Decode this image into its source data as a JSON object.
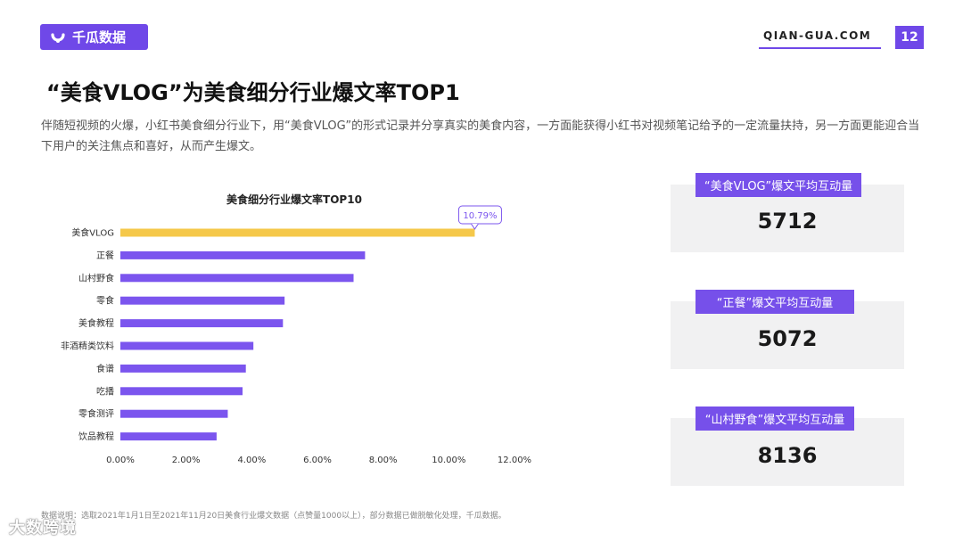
{
  "header": {
    "logo_text": "千瓜数据",
    "logo_icon": "qiangua-logo-icon",
    "site": "QIAN-GUA.COM",
    "page_number": "12",
    "accent_color": "#6f48e8"
  },
  "title": "“美食VLOG”为美食细分行业爆文率TOP1",
  "description": "伴随短视频的火爆，小红书美食细分行业下，用“美食VLOG”的形式记录并分享真实的美食内容，一方面能获得小红书对视频笔记给予的一定流量扶持，另一方面更能迎合当下用户的关注焦点和喜好，从而产生爆文。",
  "chart_data": {
    "type": "bar",
    "orientation": "horizontal",
    "title": "美食细分行业爆文率TOP10",
    "categories": [
      "美食VLOG",
      "正餐",
      "山村野食",
      "零食",
      "美食教程",
      "非酒精类饮料",
      "食谱",
      "吃播",
      "零食测评",
      "饮品教程"
    ],
    "values": [
      10.79,
      7.45,
      7.1,
      5.0,
      4.95,
      4.05,
      3.82,
      3.72,
      3.27,
      2.93
    ],
    "unit": "%",
    "xlim": [
      0,
      12
    ],
    "xticks": [
      "0.00%",
      "2.00%",
      "4.00%",
      "6.00%",
      "8.00%",
      "10.00%",
      "12.00%"
    ],
    "highlight_label": "10.79%",
    "colors": {
      "highlight": "#f5c84a",
      "bar": "#7b55ee"
    },
    "grid": false
  },
  "cards": [
    {
      "label": "“美食VLOG”爆文平均互动量",
      "value": "5712"
    },
    {
      "label": "“正餐”爆文平均互动量",
      "value": "5072"
    },
    {
      "label": "“山村野食”爆文平均互动量",
      "value": "8136"
    }
  ],
  "footnote": "数据说明：选取2021年1月1日至2021年11月20日美食行业爆文数据（点赞量1000以上），部分数据已做脱敏化处理，千瓜数据。",
  "watermark": "大数跨境"
}
